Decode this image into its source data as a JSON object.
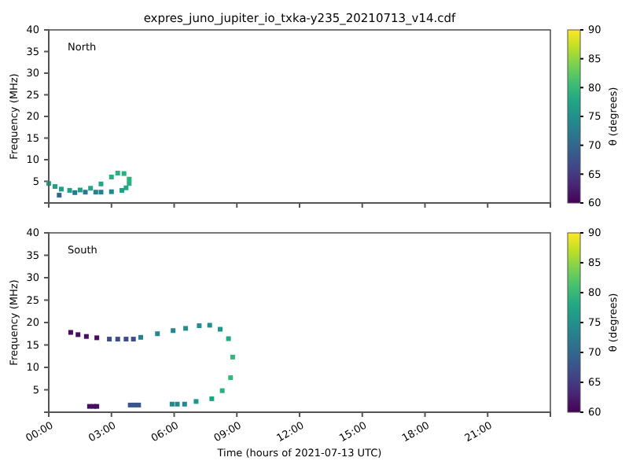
{
  "chart_data": [
    {
      "type": "scatter",
      "title": "expres_juno_jupiter_io_txka-y235_20210713_v14.cdf",
      "ylabel": "Frequency (MHz)",
      "clabel": "θ (degrees)",
      "annotations": [
        "North"
      ],
      "marker": "square",
      "tick_labels": "y",
      "xlim": [
        0,
        24
      ],
      "xticks": [
        {
          "value": 0,
          "label": null
        },
        {
          "value": 3,
          "label": null
        },
        {
          "value": 6,
          "label": null
        },
        {
          "value": 9,
          "label": null
        },
        {
          "value": 12,
          "label": null
        },
        {
          "value": 15,
          "label": null
        },
        {
          "value": 18,
          "label": null
        },
        {
          "value": 21,
          "label": null
        }
      ],
      "ylim": [
        0,
        40
      ],
      "yticks": [
        5,
        10,
        15,
        20,
        25,
        30,
        35,
        40
      ],
      "clim": [
        60,
        90
      ],
      "cticks": [
        60,
        65,
        70,
        75,
        80,
        85,
        90
      ],
      "x": [
        0.0,
        0.3,
        0.6,
        1.0,
        1.5,
        2.0,
        2.5,
        3.0,
        3.3,
        3.6,
        3.85,
        3.85,
        3.7,
        3.5,
        3.0,
        2.5,
        2.25,
        1.75,
        1.25,
        0.5
      ],
      "values": [
        4.5,
        3.8,
        3.2,
        2.9,
        3.0,
        3.4,
        4.4,
        6.0,
        6.9,
        6.8,
        5.5,
        4.5,
        3.5,
        2.9,
        2.6,
        2.5,
        2.5,
        2.5,
        2.4,
        1.8
      ],
      "cvalues": [
        78,
        77,
        77,
        77,
        77,
        78,
        78,
        79,
        79,
        79,
        79,
        79,
        78,
        77,
        74,
        73,
        73,
        72,
        72,
        70
      ]
    },
    {
      "type": "scatter",
      "xlabel": "Time (hours of 2021-07-13 UTC)",
      "ylabel": "Frequency (MHz)",
      "clabel": "θ (degrees)",
      "annotations": [
        "South"
      ],
      "marker": "square",
      "xlim": [
        0,
        24
      ],
      "xticks": [
        {
          "value": 0,
          "label": "00:00"
        },
        {
          "value": 3,
          "label": "03:00"
        },
        {
          "value": 6,
          "label": "06:00"
        },
        {
          "value": 9,
          "label": "09:00"
        },
        {
          "value": 12,
          "label": "12:00"
        },
        {
          "value": 15,
          "label": "15:00"
        },
        {
          "value": 18,
          "label": "18:00"
        },
        {
          "value": 21,
          "label": "21:00"
        }
      ],
      "ylim": [
        0,
        40
      ],
      "yticks": [
        5,
        10,
        15,
        20,
        25,
        30,
        35,
        40
      ],
      "clim": [
        60,
        90
      ],
      "cticks": [
        60,
        65,
        70,
        75,
        80,
        85,
        90
      ],
      "x": [
        1.05,
        1.4,
        1.8,
        2.3,
        2.9,
        3.3,
        3.7,
        4.05,
        4.4,
        5.2,
        5.95,
        6.55,
        7.2,
        7.7,
        8.2,
        8.6,
        8.8,
        8.7,
        8.3,
        7.8,
        7.05,
        6.5,
        6.15,
        5.9,
        3.9,
        4.1,
        4.3,
        1.95,
        2.15,
        2.3
      ],
      "values": [
        17.8,
        17.3,
        16.9,
        16.6,
        16.3,
        16.3,
        16.3,
        16.3,
        16.7,
        17.5,
        18.2,
        18.7,
        19.3,
        19.4,
        18.5,
        16.4,
        12.3,
        7.7,
        4.8,
        3.0,
        2.4,
        1.8,
        1.8,
        1.8,
        1.6,
        1.6,
        1.6,
        1.3,
        1.3,
        1.3
      ],
      "cvalues": [
        61,
        61,
        61,
        61,
        67,
        67,
        67,
        67,
        73,
        74,
        74,
        75,
        75,
        75,
        76,
        78,
        80,
        80,
        79,
        77,
        76,
        74,
        74,
        74,
        68,
        68,
        68,
        61,
        61,
        61
      ]
    }
  ]
}
